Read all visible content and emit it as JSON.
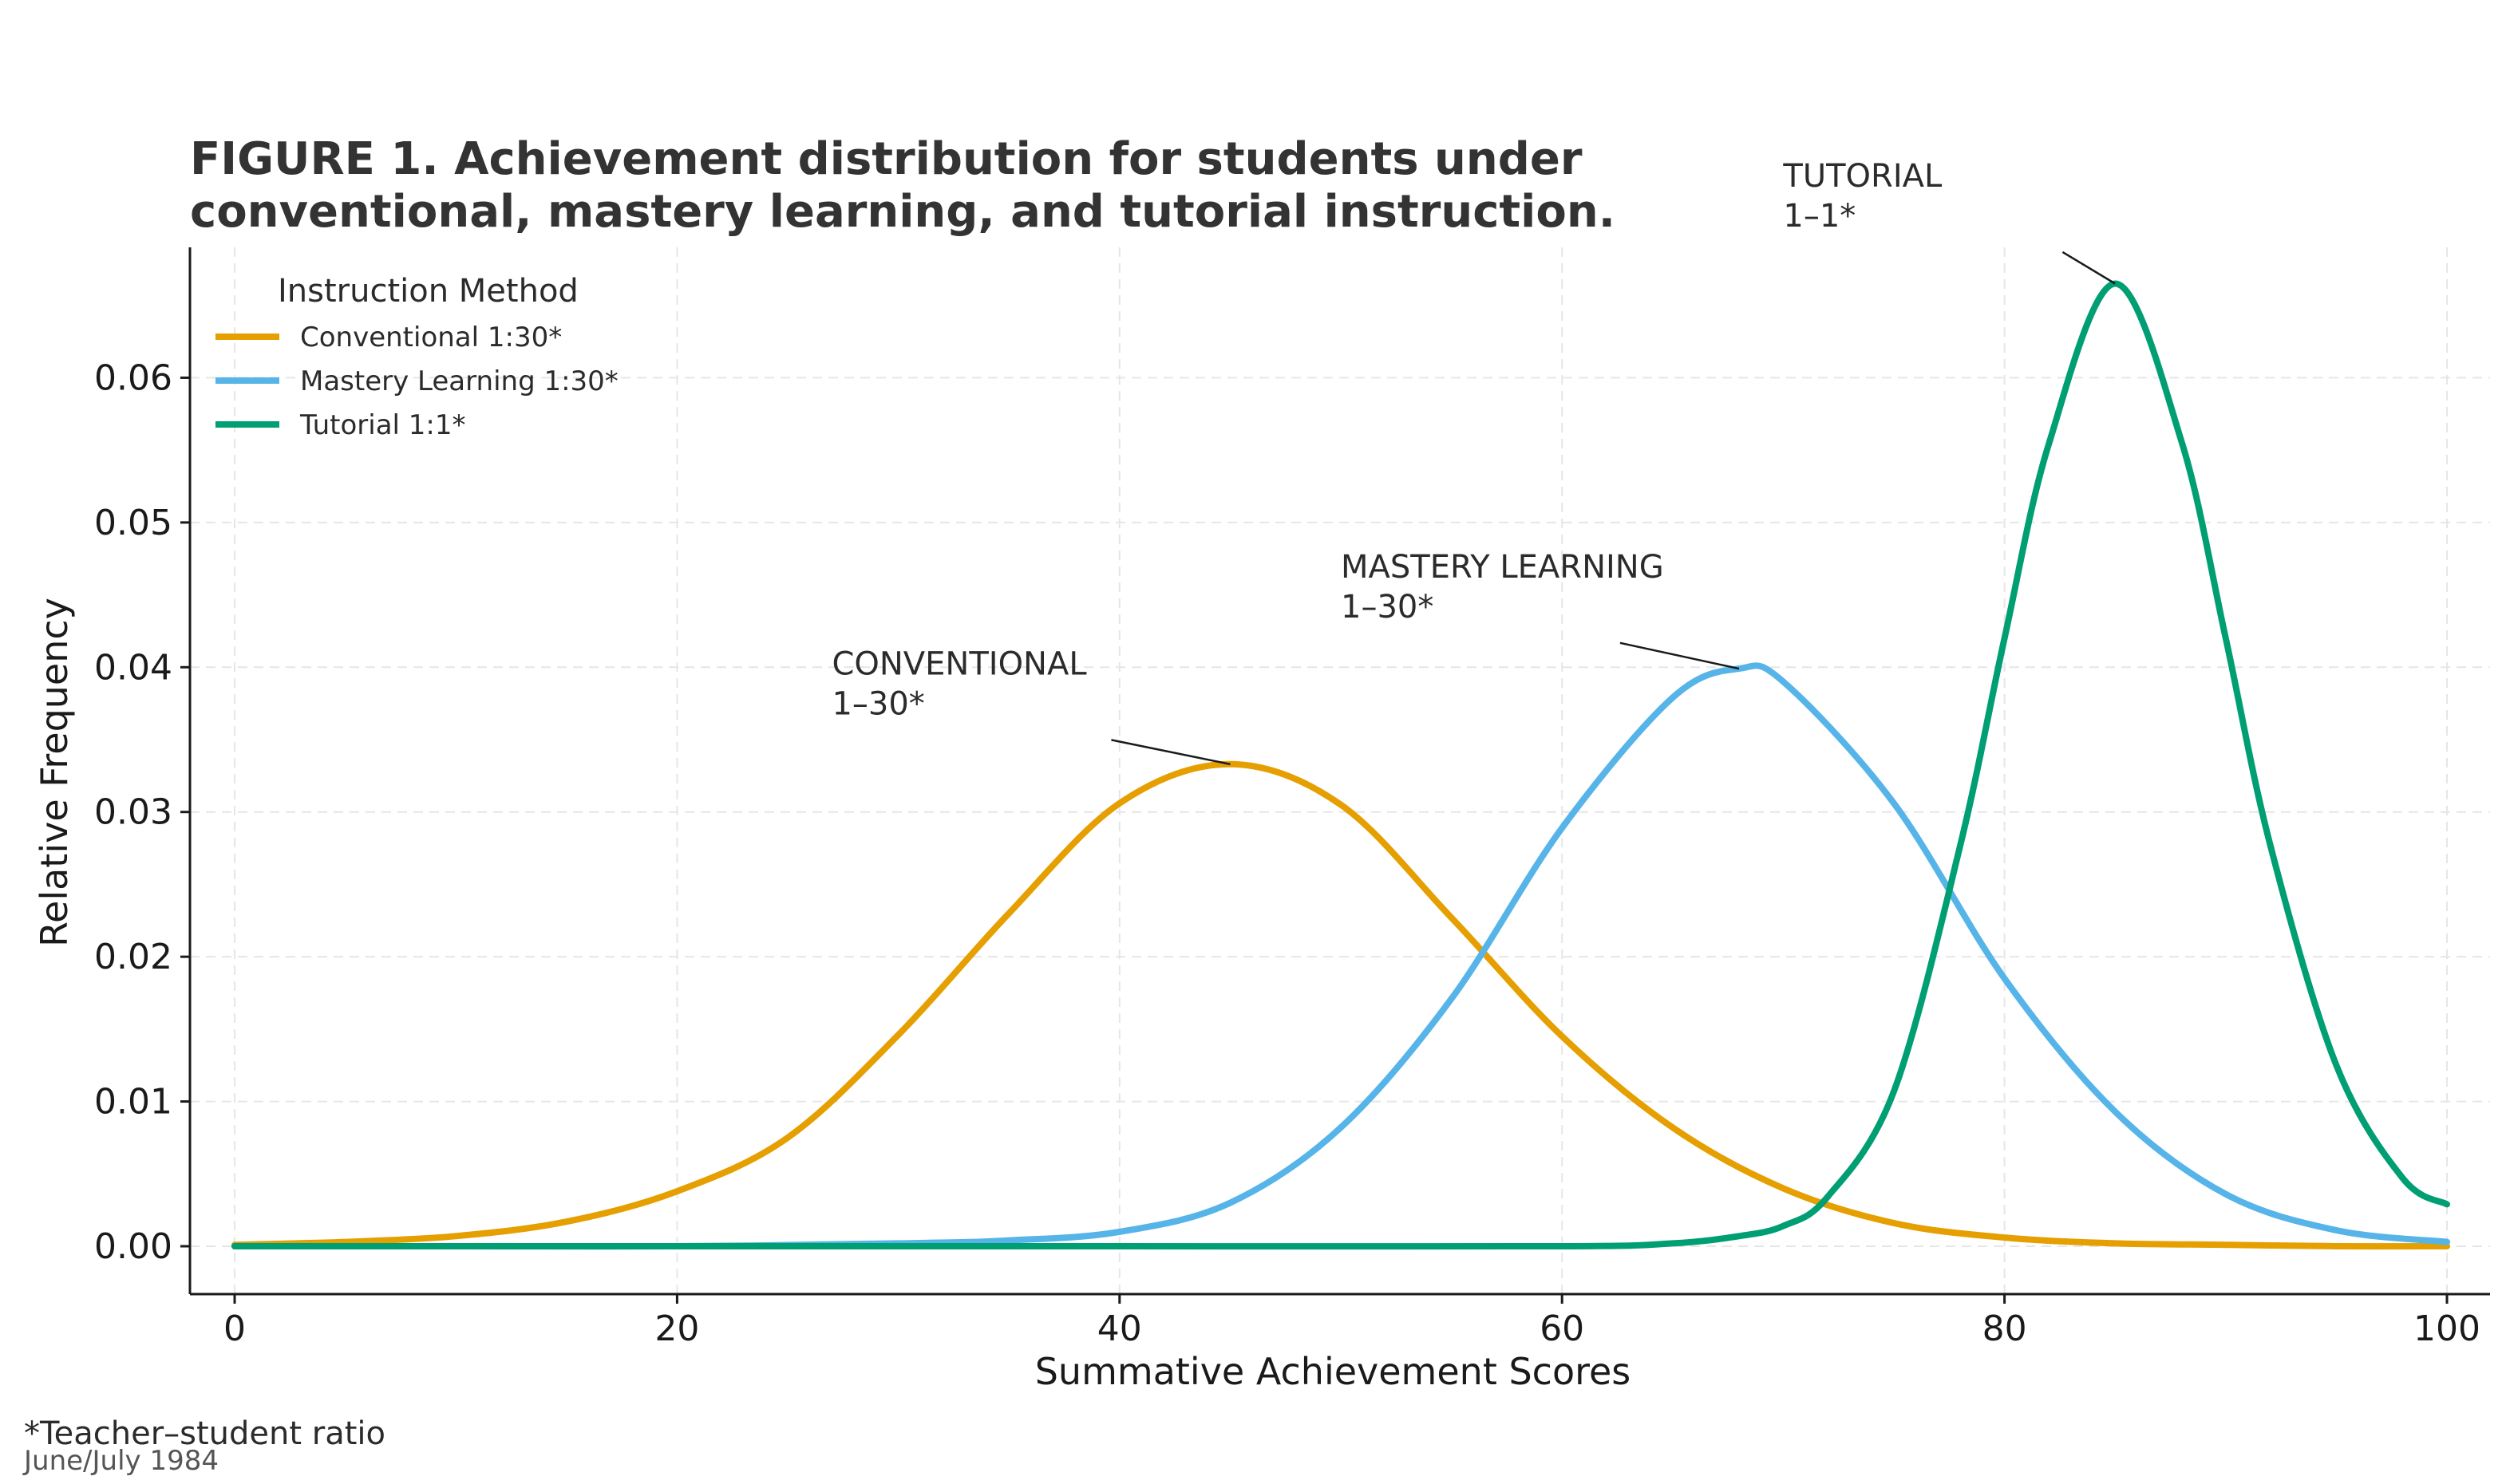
{
  "chart_data": {
    "type": "line",
    "title_lines": [
      "FIGURE 1. Achievement distribution for students under",
      "conventional, mastery learning, and tutorial instruction."
    ],
    "xlabel": "Summative Achievement Scores",
    "ylabel": "Relative Frequency",
    "xlim": [
      0,
      100
    ],
    "ylim": [
      0,
      0.07
    ],
    "xticks": [
      0,
      20,
      40,
      60,
      80,
      100
    ],
    "xtick_labels": [
      "0",
      "20",
      "40",
      "60",
      "80",
      "100"
    ],
    "yticks": [
      0,
      0.01,
      0.02,
      0.03,
      0.04,
      0.05,
      0.06
    ],
    "ytick_labels": [
      "0.00",
      "0.01",
      "0.02",
      "0.03",
      "0.04",
      "0.05",
      "0.06"
    ],
    "grid": true,
    "legend": {
      "title": "Instruction Method",
      "placement": "top-left",
      "entries": [
        "Conventional 1:30*",
        "Mastery Learning 1:30*",
        "Tutorial 1:1*"
      ]
    },
    "series": [
      {
        "name": "Conventional 1:30*",
        "color": "#E69F00",
        "x": [
          0,
          5,
          10,
          15,
          20,
          25,
          30,
          35,
          40,
          45,
          50,
          55,
          60,
          65,
          70,
          75,
          80,
          85,
          90,
          95,
          100
        ],
        "y": [
          0.0001,
          0.0003,
          0.0007,
          0.0017,
          0.0038,
          0.0075,
          0.0146,
          0.023,
          0.0306,
          0.0333,
          0.0305,
          0.0227,
          0.0145,
          0.0082,
          0.004,
          0.0016,
          0.0006,
          0.0002,
          0.0001,
          0.0,
          0.0
        ]
      },
      {
        "name": "Mastery Learning 1:30*",
        "color": "#56B4E9",
        "x": [
          0,
          10,
          20,
          30,
          35,
          40,
          45,
          50,
          55,
          60,
          65,
          68,
          70,
          75,
          80,
          85,
          90,
          95,
          100
        ],
        "y": [
          0,
          0,
          0,
          0.0002,
          0.0004,
          0.001,
          0.003,
          0.0082,
          0.0171,
          0.0289,
          0.0379,
          0.0399,
          0.039,
          0.0306,
          0.0185,
          0.0093,
          0.0036,
          0.0011,
          0.0003
        ]
      },
      {
        "name": "Tutorial 1:1*",
        "color": "#009E73",
        "x": [
          0,
          20,
          40,
          60,
          65,
          68,
          70,
          72,
          75,
          78,
          80,
          82,
          85,
          88,
          90,
          92,
          95,
          98,
          100
        ],
        "y": [
          0,
          0,
          0,
          0,
          0.0002,
          0.0007,
          0.0014,
          0.0034,
          0.0107,
          0.0277,
          0.042,
          0.0554,
          0.0665,
          0.0556,
          0.042,
          0.0278,
          0.0125,
          0.0047,
          0.0029
        ]
      }
    ],
    "annotations": [
      {
        "lines": [
          "CONVENTIONAL",
          "1–30*"
        ],
        "text_x": 27,
        "text_y": 0.0395,
        "point_x": 45,
        "point_y": 0.0333
      },
      {
        "lines": [
          "MASTERY LEARNING",
          "1–30*"
        ],
        "text_x": 50,
        "text_y": 0.0462,
        "point_x": 68,
        "point_y": 0.0399
      },
      {
        "lines": [
          "TUTORIAL",
          "1–1*"
        ],
        "text_x": 70,
        "text_y": 0.0732,
        "point_x": 85,
        "point_y": 0.0665
      }
    ]
  },
  "footnote": "*Teacher–student ratio",
  "dateline": "June/July 1984"
}
